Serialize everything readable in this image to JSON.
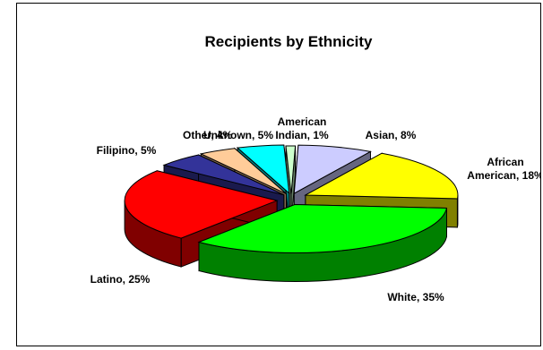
{
  "chart_data": {
    "type": "pie",
    "title": "Recipients by Ethnicity",
    "three_d": true,
    "slices": [
      {
        "label_lines": [
          "American",
          "Indian, 1%"
        ],
        "category": "American Indian",
        "value": 1,
        "color": "#ccffcc"
      },
      {
        "label_lines": [
          "Asian, 8%"
        ],
        "category": "Asian",
        "value": 8,
        "color": "#ccccff"
      },
      {
        "label_lines": [
          "African",
          "American, 18%"
        ],
        "category": "African American",
        "value": 18,
        "color": "#ffff00"
      },
      {
        "label_lines": [
          "White, 35%"
        ],
        "category": "White",
        "value": 35,
        "color": "#00ff00"
      },
      {
        "label_lines": [
          "Latino, 25%"
        ],
        "category": "Latino",
        "value": 25,
        "color": "#ff0000"
      },
      {
        "label_lines": [
          "Filipino, 5%"
        ],
        "category": "Filipino",
        "value": 5,
        "color": "#333399"
      },
      {
        "label_lines": [
          "Other, 4%"
        ],
        "category": "Other",
        "value": 4,
        "color": "#ffcc99"
      },
      {
        "label_lines": [
          "Unknown, 5%"
        ],
        "category": "Unknown",
        "value": 5,
        "color": "#00ffff"
      }
    ]
  }
}
